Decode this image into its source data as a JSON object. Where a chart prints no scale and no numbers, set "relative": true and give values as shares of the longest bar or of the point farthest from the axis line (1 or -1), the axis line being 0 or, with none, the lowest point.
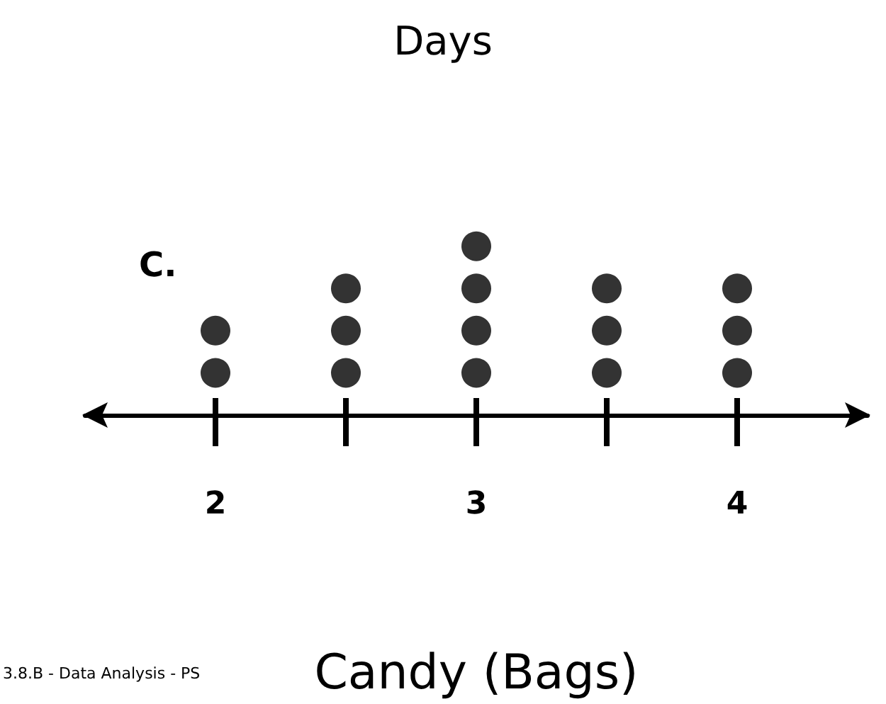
{
  "chart_data": {
    "type": "scatter",
    "title": "Days",
    "xlabel": "Candy (Bags)",
    "annotations": [
      "C.",
      "3.8.B - Data Analysis - PS"
    ],
    "x": [
      2,
      2,
      2.5,
      2.5,
      2.5,
      3,
      3,
      3,
      3,
      3.5,
      3.5,
      3.5,
      4,
      4,
      4
    ],
    "values": [
      0.25,
      0.5,
      0.25,
      0.5,
      0.75,
      0.25,
      0.5,
      0.75,
      1,
      0.25,
      0.5,
      0.75,
      0.25,
      0.5,
      0.75
    ],
    "relative": true,
    "color": "#000000",
    "marker": "circle",
    "xlim": [
      1.5,
      4.5
    ],
    "xticks": [
      2,
      {
        "value": 2.5,
        "label": null
      },
      3,
      {
        "value": 3.5,
        "label": null
      },
      4
    ],
    "grid": false
  }
}
